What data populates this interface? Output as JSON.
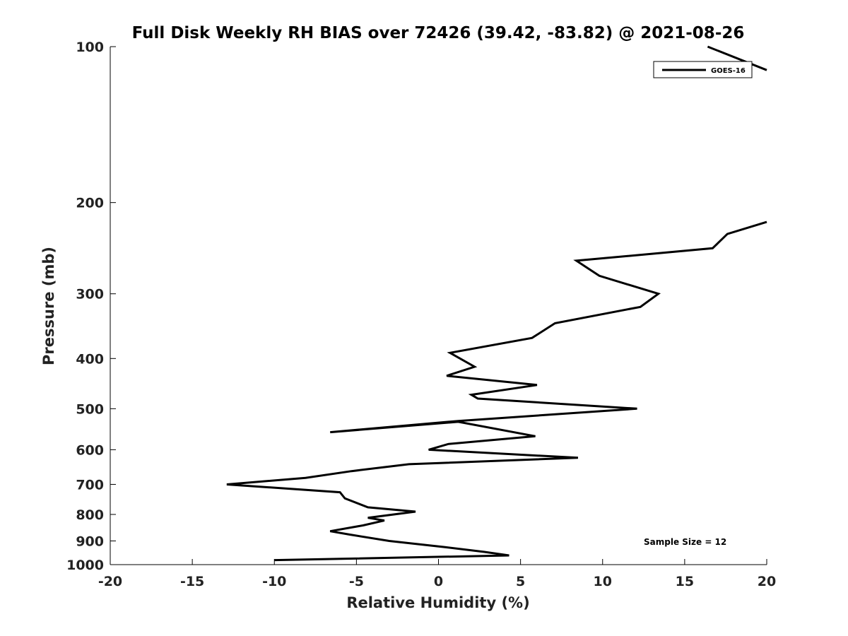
{
  "chart_data": {
    "type": "line",
    "title": "Full Disk Weekly RH BIAS over 72426 (39.42, -83.82) @ 2021-08-26",
    "xlabel": "Relative Humidity (%)",
    "ylabel": "Pressure (mb)",
    "xlim": [
      -20,
      20
    ],
    "ylim": [
      100,
      1000
    ],
    "y_scale": "log",
    "y_reversed": true,
    "x_ticks": [
      "-20",
      "-15",
      "-10",
      "-5",
      "0",
      "5",
      "10",
      "15",
      "20"
    ],
    "y_ticks": [
      "100",
      "200",
      "300",
      "400",
      "500",
      "600",
      "700",
      "800",
      "900",
      "1000"
    ],
    "grid": false,
    "legend_position": "top-right",
    "annotation": "Sample Size = 12",
    "series": [
      {
        "name": "GOES-16",
        "color": "#000000",
        "x": [
          -10.0,
          4.3,
          2.8,
          0.4,
          -3.0,
          -5.4,
          -6.6,
          -4.6,
          -3.3,
          -4.3,
          -1.4,
          -4.3,
          -5.7,
          -6.0,
          -12.9,
          -8.1,
          -5.3,
          -1.8,
          8.5,
          -0.6,
          0.6,
          5.9,
          1.2,
          -6.6,
          1.2,
          12.1,
          2.4,
          2.0,
          6.0,
          0.5,
          2.2,
          0.7,
          5.7,
          7.1,
          12.3,
          13.4,
          9.8,
          8.4,
          16.7,
          17.6,
          20.0
        ],
        "y": [
          980,
          960,
          945,
          925,
          900,
          875,
          862,
          840,
          822,
          812,
          790,
          775,
          745,
          725,
          700,
          680,
          660,
          640,
          622,
          600,
          585,
          565,
          530,
          555,
          528,
          500,
          478,
          470,
          450,
          432,
          415,
          390,
          365,
          342,
          318,
          300,
          277,
          259,
          245,
          230,
          218
        ]
      },
      {
        "name": "",
        "color": "#000000",
        "x": [
          16.4,
          20.0
        ],
        "y": [
          100,
          111
        ]
      }
    ]
  }
}
